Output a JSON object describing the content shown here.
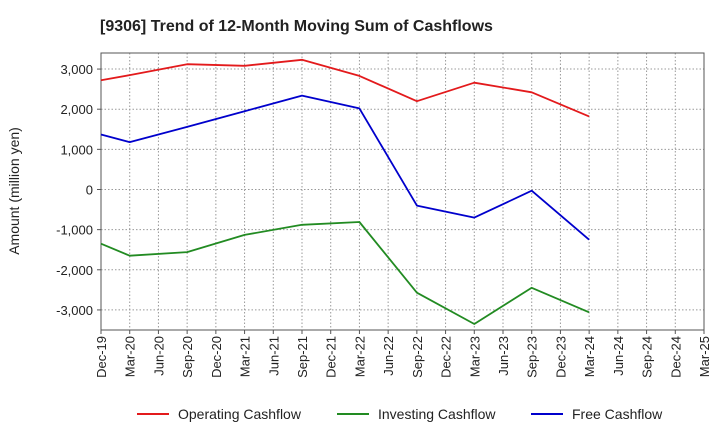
{
  "chart_data": {
    "type": "line",
    "title": "[9306]  Trend of 12-Month Moving Sum of Cashflows",
    "ylabel": "Amount (million yen)",
    "xlabel": "",
    "ylim": [
      -3500,
      3400
    ],
    "yticks": [
      3000,
      2000,
      1000,
      0,
      -1000,
      -2000,
      -3000
    ],
    "ytick_labels": [
      "3,000",
      "2,000",
      "1,000",
      "0",
      "-1,000",
      "-2,000",
      "-3,000"
    ],
    "categories": [
      "Dec-19",
      "Mar-20",
      "Jun-20",
      "Sep-20",
      "Dec-20",
      "Mar-21",
      "Jun-21",
      "Sep-21",
      "Dec-21",
      "Mar-22",
      "Jun-22",
      "Sep-22",
      "Dec-22",
      "Mar-23",
      "Jun-23",
      "Sep-23",
      "Dec-23",
      "Mar-24",
      "Jun-24",
      "Sep-24",
      "Dec-24",
      "Mar-25"
    ],
    "grid": true,
    "legend_position": "bottom",
    "series": [
      {
        "name": "Operating Cashflow",
        "color": "#e31a1c",
        "values": [
          2720,
          2850,
          null,
          3120,
          null,
          3080,
          null,
          3230,
          null,
          2830,
          null,
          2200,
          null,
          2660,
          null,
          2420,
          null,
          1820,
          null,
          null,
          null,
          null
        ]
      },
      {
        "name": "Investing Cashflow",
        "color": "#228b22",
        "values": [
          -1350,
          -1650,
          null,
          -1560,
          null,
          -1130,
          null,
          -880,
          null,
          -810,
          null,
          -2570,
          null,
          -3350,
          null,
          -2450,
          null,
          -3060,
          null,
          null,
          null,
          null
        ]
      },
      {
        "name": "Free Cashflow",
        "color": "#0000cc",
        "values": [
          1370,
          1180,
          null,
          1560,
          null,
          1950,
          null,
          2340,
          null,
          2020,
          null,
          -400,
          null,
          -700,
          null,
          -30,
          null,
          -1250,
          null,
          null,
          null,
          null
        ]
      }
    ]
  }
}
